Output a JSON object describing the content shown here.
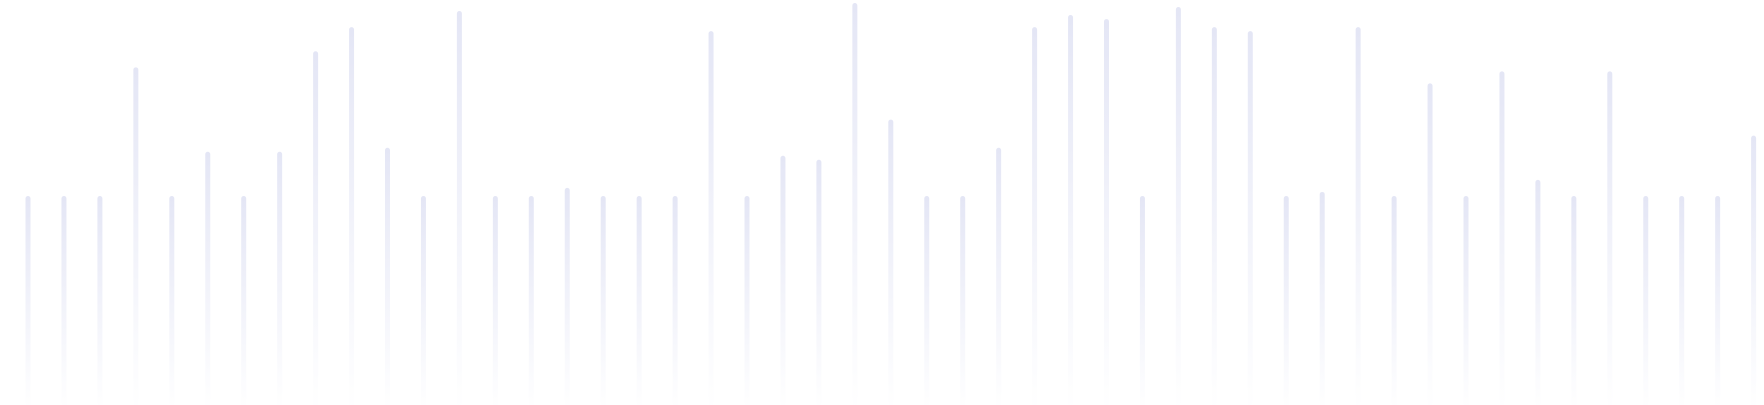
{
  "chart_data": {
    "type": "bar",
    "title": "",
    "xlabel": "",
    "ylabel": "",
    "values": [
      52,
      52,
      52,
      84,
      52,
      63,
      52,
      63,
      88,
      94,
      64,
      52,
      98,
      52,
      52,
      54,
      52,
      52,
      52,
      93,
      52,
      62,
      61,
      100,
      71,
      52,
      52,
      64,
      94,
      97,
      96,
      52,
      99,
      94,
      93,
      52,
      53,
      94,
      52,
      80,
      52,
      83,
      56,
      52,
      83,
      52,
      52,
      52,
      67
    ],
    "ylim": [
      0,
      100
    ],
    "grid": false,
    "legend": "none",
    "colors": {
      "bar_top": "#e4e6f5",
      "bar_bottom": "#ffffff",
      "background": "#ffffff"
    }
  }
}
